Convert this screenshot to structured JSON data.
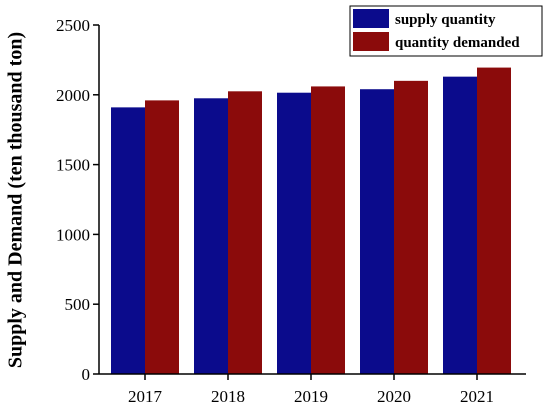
{
  "chart_data": {
    "type": "bar",
    "title": "",
    "xlabel": "",
    "ylabel": "Supply and Demand (ten thousand ton)",
    "categories": [
      "2017",
      "2018",
      "2019",
      "2020",
      "2021"
    ],
    "series": [
      {
        "name": "supply quantity",
        "values": [
          1910,
          1975,
          2015,
          2040,
          2130
        ],
        "color": "#0b0b8c"
      },
      {
        "name": "quantity demanded",
        "values": [
          1960,
          2025,
          2060,
          2100,
          2195
        ],
        "color": "#8b0b0b"
      }
    ],
    "ylim": [
      0,
      2500
    ],
    "yticks": [
      0,
      500,
      1000,
      1500,
      2000,
      2500
    ],
    "grid": false,
    "legend_position": "top-right"
  }
}
